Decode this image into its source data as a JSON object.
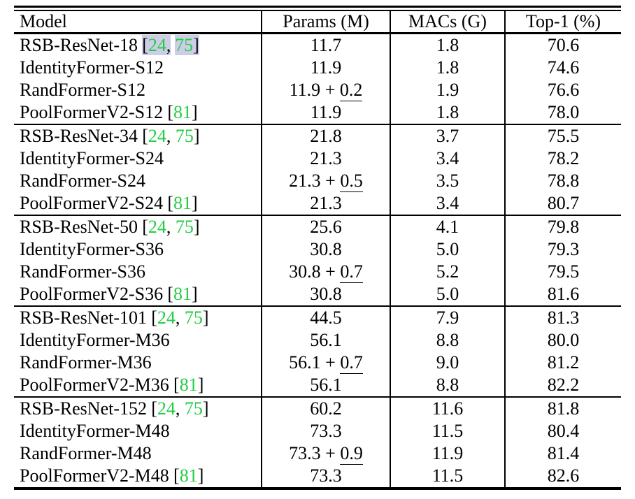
{
  "header": {
    "model": "Model",
    "params": "Params (M)",
    "macs": "MACs (G)",
    "top1": "Top-1 (%)"
  },
  "citation_format": {
    "open": "[",
    "comma": ",",
    "sep": ", ",
    "close": "]"
  },
  "params_plus": " + ",
  "colors": {
    "citation_green": "#22ce41",
    "link_highlight": "#cdcde8",
    "rule_color": "#000000"
  },
  "groups": [
    {
      "rows": [
        {
          "model": "RSB-ResNet-18",
          "cites": [
            "24",
            "75"
          ],
          "cite_highlight": true,
          "params": "11.7",
          "params_extra": null,
          "macs": "1.8",
          "top1": "70.6"
        },
        {
          "model": "IdentityFormer-S12",
          "cites": null,
          "cite_highlight": false,
          "params": "11.9",
          "params_extra": null,
          "macs": "1.8",
          "top1": "74.6"
        },
        {
          "model": "RandFormer-S12",
          "cites": null,
          "cite_highlight": false,
          "params": "11.9",
          "params_extra": "0.2",
          "macs": "1.9",
          "top1": "76.6"
        },
        {
          "model": "PoolFormerV2-S12",
          "cites": [
            "81"
          ],
          "cite_highlight": false,
          "params": "11.9",
          "params_extra": null,
          "macs": "1.8",
          "top1": "78.0"
        }
      ]
    },
    {
      "rows": [
        {
          "model": "RSB-ResNet-34",
          "cites": [
            "24",
            "75"
          ],
          "cite_highlight": false,
          "params": "21.8",
          "params_extra": null,
          "macs": "3.7",
          "top1": "75.5"
        },
        {
          "model": "IdentityFormer-S24",
          "cites": null,
          "cite_highlight": false,
          "params": "21.3",
          "params_extra": null,
          "macs": "3.4",
          "top1": "78.2"
        },
        {
          "model": "RandFormer-S24",
          "cites": null,
          "cite_highlight": false,
          "params": "21.3",
          "params_extra": "0.5",
          "macs": "3.5",
          "top1": "78.8"
        },
        {
          "model": "PoolFormerV2-S24",
          "cites": [
            "81"
          ],
          "cite_highlight": false,
          "params": "21.3",
          "params_extra": null,
          "macs": "3.4",
          "top1": "80.7"
        }
      ]
    },
    {
      "rows": [
        {
          "model": "RSB-ResNet-50",
          "cites": [
            "24",
            "75"
          ],
          "cite_highlight": false,
          "params": "25.6",
          "params_extra": null,
          "macs": "4.1",
          "top1": "79.8"
        },
        {
          "model": "IdentityFormer-S36",
          "cites": null,
          "cite_highlight": false,
          "params": "30.8",
          "params_extra": null,
          "macs": "5.0",
          "top1": "79.3"
        },
        {
          "model": "RandFormer-S36",
          "cites": null,
          "cite_highlight": false,
          "params": "30.8",
          "params_extra": "0.7",
          "macs": "5.2",
          "top1": "79.5"
        },
        {
          "model": "PoolFormerV2-S36",
          "cites": [
            "81"
          ],
          "cite_highlight": false,
          "params": "30.8",
          "params_extra": null,
          "macs": "5.0",
          "top1": "81.6"
        }
      ]
    },
    {
      "rows": [
        {
          "model": "RSB-ResNet-101",
          "cites": [
            "24",
            "75"
          ],
          "cite_highlight": false,
          "params": "44.5",
          "params_extra": null,
          "macs": "7.9",
          "top1": "81.3"
        },
        {
          "model": "IdentityFormer-M36",
          "cites": null,
          "cite_highlight": false,
          "params": "56.1",
          "params_extra": null,
          "macs": "8.8",
          "top1": "80.0"
        },
        {
          "model": "RandFormer-M36",
          "cites": null,
          "cite_highlight": false,
          "params": "56.1",
          "params_extra": "0.7",
          "macs": "9.0",
          "top1": "81.2"
        },
        {
          "model": "PoolFormerV2-M36",
          "cites": [
            "81"
          ],
          "cite_highlight": false,
          "params": "56.1",
          "params_extra": null,
          "macs": "8.8",
          "top1": "82.2"
        }
      ]
    },
    {
      "rows": [
        {
          "model": "RSB-ResNet-152",
          "cites": [
            "24",
            "75"
          ],
          "cite_highlight": false,
          "params": "60.2",
          "params_extra": null,
          "macs": "11.6",
          "top1": "81.8"
        },
        {
          "model": "IdentityFormer-M48",
          "cites": null,
          "cite_highlight": false,
          "params": "73.3",
          "params_extra": null,
          "macs": "11.5",
          "top1": "80.4"
        },
        {
          "model": "RandFormer-M48",
          "cites": null,
          "cite_highlight": false,
          "params": "73.3",
          "params_extra": "0.9",
          "macs": "11.9",
          "top1": "81.4"
        },
        {
          "model": "PoolFormerV2-M48",
          "cites": [
            "81"
          ],
          "cite_highlight": false,
          "params": "73.3",
          "params_extra": null,
          "macs": "11.5",
          "top1": "82.6"
        }
      ]
    }
  ]
}
